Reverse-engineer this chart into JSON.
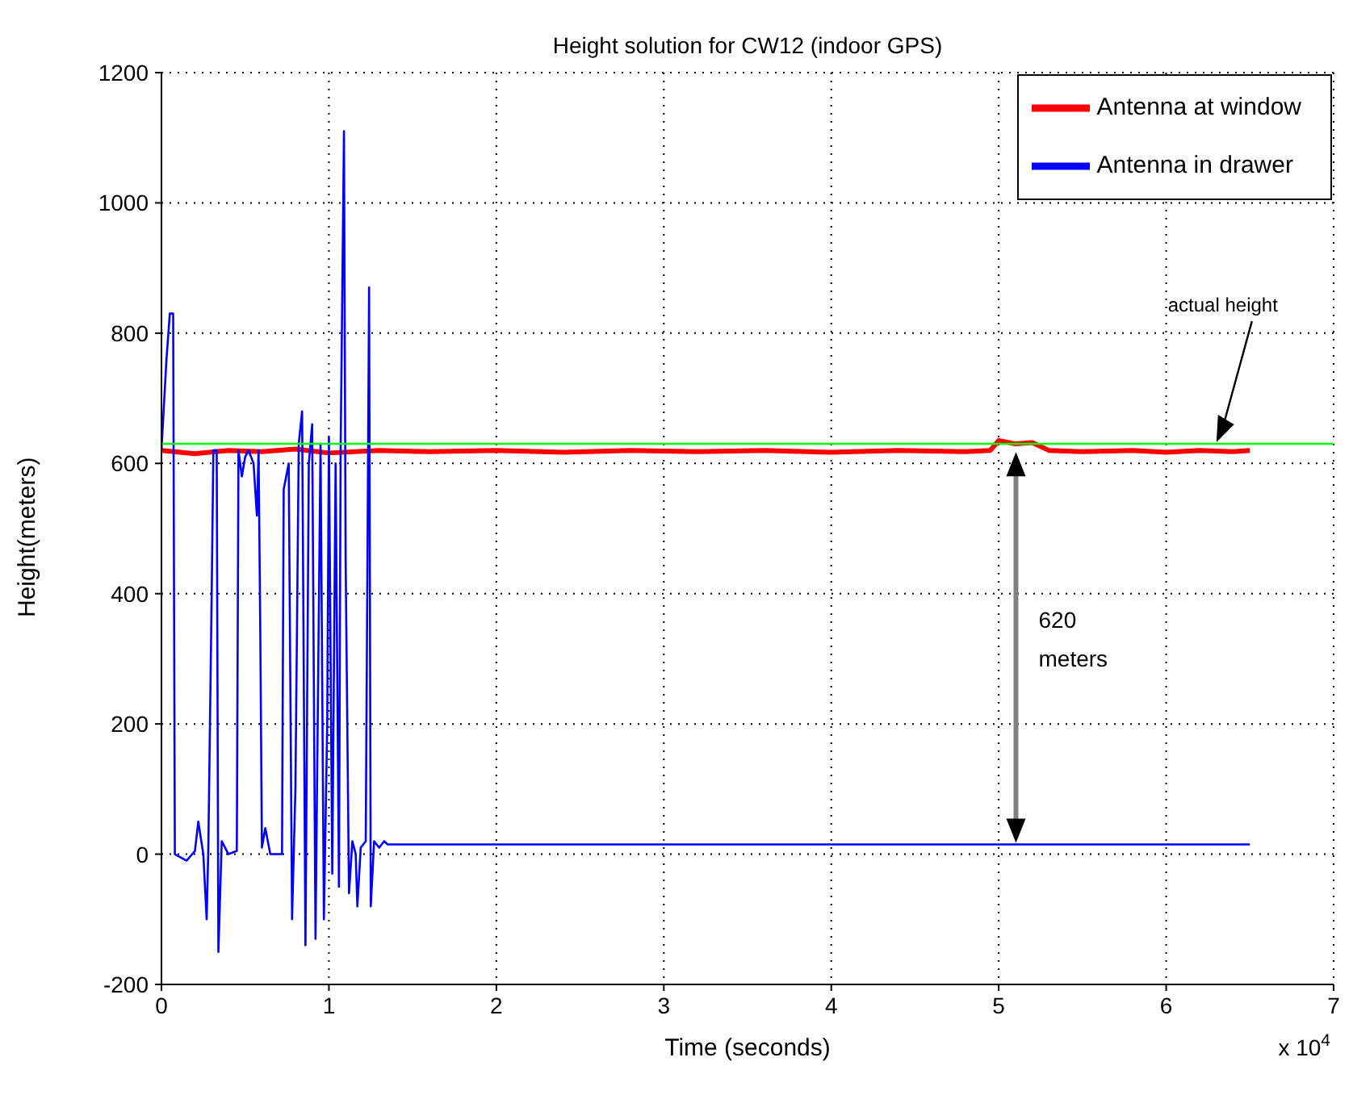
{
  "chart_data": {
    "type": "line",
    "title": "Height solution for CW12 (indoor GPS)",
    "xlabel": "Time (seconds)",
    "ylabel": "Height(meters)",
    "xlim": [
      0,
      7
    ],
    "xticks": [
      0,
      1,
      2,
      3,
      4,
      5,
      6,
      7
    ],
    "ylim": [
      -200,
      1200
    ],
    "yticks": [
      -200,
      0,
      200,
      400,
      600,
      800,
      1000,
      1200
    ],
    "grid": true,
    "legend": "top right",
    "line_style": "solid",
    "marker": "none",
    "series": [
      {
        "name": "Antenna at window",
        "color": "#ff0000",
        "x": [
          0,
          0.2,
          0.4,
          0.6,
          0.8,
          1.0,
          1.3,
          1.6,
          2.0,
          2.4,
          2.8,
          3.2,
          3.6,
          4.0,
          4.4,
          4.8,
          4.95,
          5.0,
          5.1,
          5.2,
          5.3,
          5.5,
          5.8,
          6.0,
          6.2,
          6.4,
          6.5
        ],
        "values": [
          620,
          615,
          620,
          618,
          622,
          616,
          620,
          618,
          620,
          617,
          620,
          618,
          620,
          617,
          620,
          618,
          620,
          635,
          630,
          632,
          620,
          618,
          620,
          617,
          620,
          618,
          620
        ]
      },
      {
        "name": "Antenna in drawer",
        "color": "#0000ff",
        "x": [
          0.0,
          0.03,
          0.05,
          0.07,
          0.08,
          0.15,
          0.2,
          0.22,
          0.25,
          0.27,
          0.28,
          0.3,
          0.31,
          0.33,
          0.34,
          0.36,
          0.4,
          0.45,
          0.46,
          0.48,
          0.5,
          0.52,
          0.55,
          0.57,
          0.58,
          0.59,
          0.6,
          0.62,
          0.65,
          0.72,
          0.73,
          0.76,
          0.78,
          0.8,
          0.82,
          0.84,
          0.86,
          0.88,
          0.9,
          0.92,
          0.95,
          0.97,
          0.99,
          1.0,
          1.02,
          1.04,
          1.06,
          1.07,
          1.09,
          1.1,
          1.12,
          1.14,
          1.16,
          1.17,
          1.19,
          1.22,
          1.24,
          1.25,
          1.27,
          1.3,
          1.33,
          1.35,
          6.5
        ],
        "values": [
          620,
          760,
          830,
          830,
          0,
          -10,
          5,
          50,
          0,
          -100,
          10,
          400,
          620,
          620,
          -150,
          20,
          0,
          5,
          620,
          580,
          610,
          620,
          600,
          520,
          620,
          350,
          10,
          40,
          0,
          0,
          560,
          600,
          -100,
          100,
          630,
          680,
          -140,
          600,
          660,
          -130,
          630,
          -100,
          200,
          640,
          -30,
          600,
          -50,
          620,
          1110,
          450,
          -60,
          20,
          0,
          -80,
          10,
          20,
          870,
          -80,
          20,
          10,
          20,
          15,
          15
        ]
      },
      {
        "color": "#00ff00",
        "x": [
          0,
          7
        ],
        "values": [
          630,
          630
        ]
      }
    ],
    "annotations": [
      "x 10$^{4}$",
      "actual height",
      "620 meters"
    ]
  }
}
